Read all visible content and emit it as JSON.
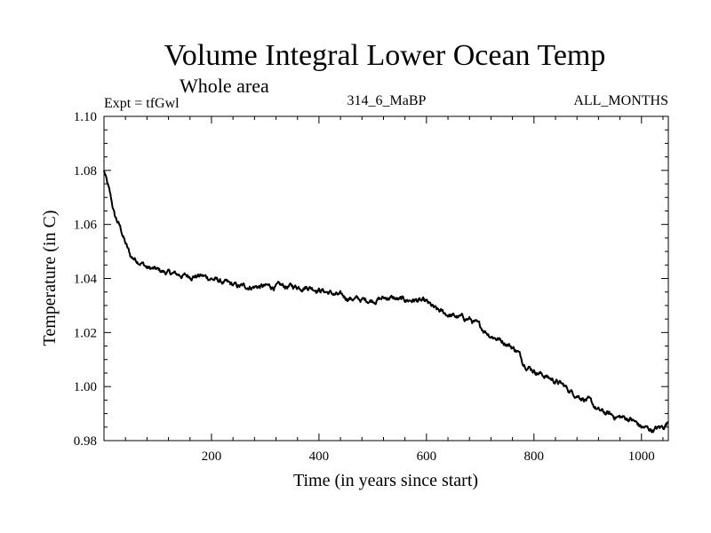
{
  "chart_data": {
    "type": "line",
    "title": "Volume Integral Lower Ocean Temp",
    "subtitle": "Whole area",
    "expt_label": "Expt = tfGwl",
    "run_label": "314_6_MaBP",
    "months_label": "ALL_MONTHS",
    "xlabel": "Time (in years since start)",
    "ylabel": "Temperature (in C)",
    "xlim": [
      0,
      1050
    ],
    "ylim": [
      0.98,
      1.1
    ],
    "xticks": [
      200,
      400,
      600,
      800,
      1000
    ],
    "xtick_labels": [
      "200",
      "400",
      "600",
      "800",
      "1000"
    ],
    "yticks": [
      0.98,
      1.0,
      1.02,
      1.04,
      1.06,
      1.08,
      1.1
    ],
    "ytick_labels": [
      "0.98",
      "1.00",
      "1.02",
      "1.04",
      "1.06",
      "1.08",
      "1.10"
    ],
    "line_color": "#000000",
    "series": [
      {
        "name": "Volume integral lower ocean temperature",
        "x": [
          0,
          10,
          20,
          30,
          40,
          50,
          60,
          70,
          80,
          100,
          120,
          150,
          180,
          200,
          230,
          250,
          280,
          300,
          330,
          350,
          380,
          400,
          430,
          450,
          480,
          500,
          530,
          550,
          580,
          600,
          620,
          650,
          680,
          700,
          720,
          750,
          770,
          780,
          800,
          820,
          850,
          870,
          900,
          920,
          950,
          980,
          1000,
          1020,
          1040,
          1050
        ],
        "values": [
          1.08,
          1.072,
          1.063,
          1.059,
          1.053,
          1.048,
          1.047,
          1.046,
          1.044,
          1.043,
          1.042,
          1.041,
          1.041,
          1.04,
          1.038,
          1.037,
          1.037,
          1.037,
          1.037,
          1.037,
          1.037,
          1.036,
          1.034,
          1.033,
          1.032,
          1.032,
          1.033,
          1.032,
          1.032,
          1.031,
          1.028,
          1.026,
          1.025,
          1.022,
          1.019,
          1.016,
          1.013,
          1.009,
          1.006,
          1.004,
          1.001,
          0.998,
          0.995,
          0.991,
          0.989,
          0.988,
          0.985,
          0.984,
          0.985,
          0.987
        ]
      }
    ]
  }
}
